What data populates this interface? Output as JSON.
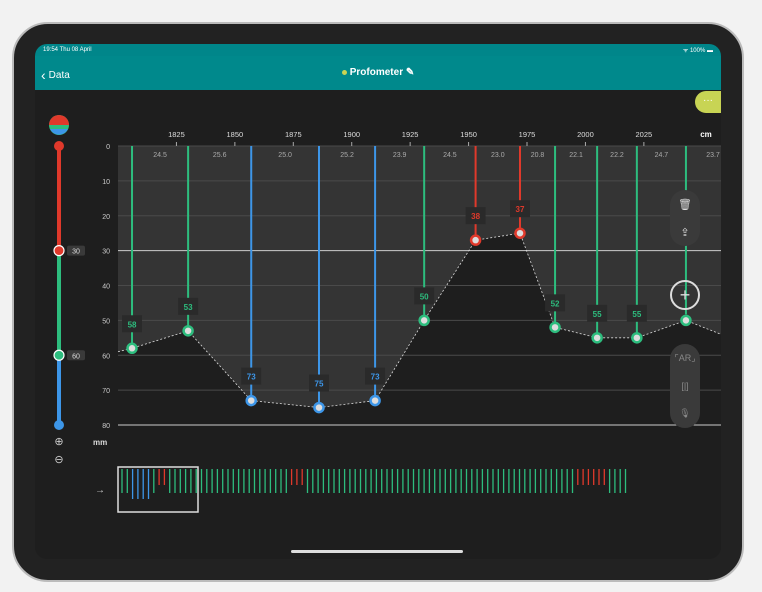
{
  "status_bar": {
    "time": "19:54 Thu 08 April",
    "battery": "100%"
  },
  "nav": {
    "back_label": "Data",
    "title": "Profometer"
  },
  "more_label": "···",
  "slider": {
    "upper": "30",
    "lower": "60",
    "unit": "mm"
  },
  "colors": {
    "red": "#e0392b",
    "green": "#2dbd7e",
    "blue": "#3d96e8",
    "accent": "#c8d454",
    "teal": "#00898c"
  },
  "chart_data": {
    "type": "line",
    "x_unit": "cm",
    "y_unit": "mm",
    "x_ticks": [
      1825,
      1850,
      1875,
      1900,
      1925,
      1950,
      1975,
      2000,
      2025
    ],
    "xlim": [
      1800,
      2058
    ],
    "y_ticks": [
      0,
      10,
      20,
      30,
      40,
      50,
      60,
      70,
      80
    ],
    "ylim": [
      0,
      80
    ],
    "threshold_line": 30,
    "points": [
      {
        "x": 1806,
        "y": 58,
        "c": "green"
      },
      {
        "x": 1830,
        "y": 53,
        "c": "green"
      },
      {
        "x": 1857,
        "y": 73,
        "c": "blue"
      },
      {
        "x": 1886,
        "y": 75,
        "c": "blue"
      },
      {
        "x": 1910,
        "y": 73,
        "c": "blue"
      },
      {
        "x": 1931,
        "y": 50,
        "c": "green"
      },
      {
        "x": 1953,
        "y": 38,
        "c": "red",
        "ydraw": 27
      },
      {
        "x": 1972,
        "y": 37,
        "c": "red",
        "ydraw": 25
      },
      {
        "x": 1987,
        "y": 52,
        "c": "green"
      },
      {
        "x": 2005,
        "y": 55,
        "c": "green"
      },
      {
        "x": 2022,
        "y": 55,
        "c": "green"
      },
      {
        "x": 2043,
        "y": 50,
        "c": "green",
        "hide_label": true
      }
    ],
    "edge_left": 59,
    "edge_right": 54,
    "spacings": [
      "24.5",
      "25.6",
      "25.0",
      "25.2",
      "23.9",
      "24.5",
      "23.0",
      "20.8",
      "22.1",
      "22.2",
      "24.7",
      "23.7"
    ]
  },
  "minimap": "ggbbbbgrrgggggggggggggggggggggggrrrgggggggggggggggggggggggggggggggggggggggggggggggggggrrrrrrgggg"
}
